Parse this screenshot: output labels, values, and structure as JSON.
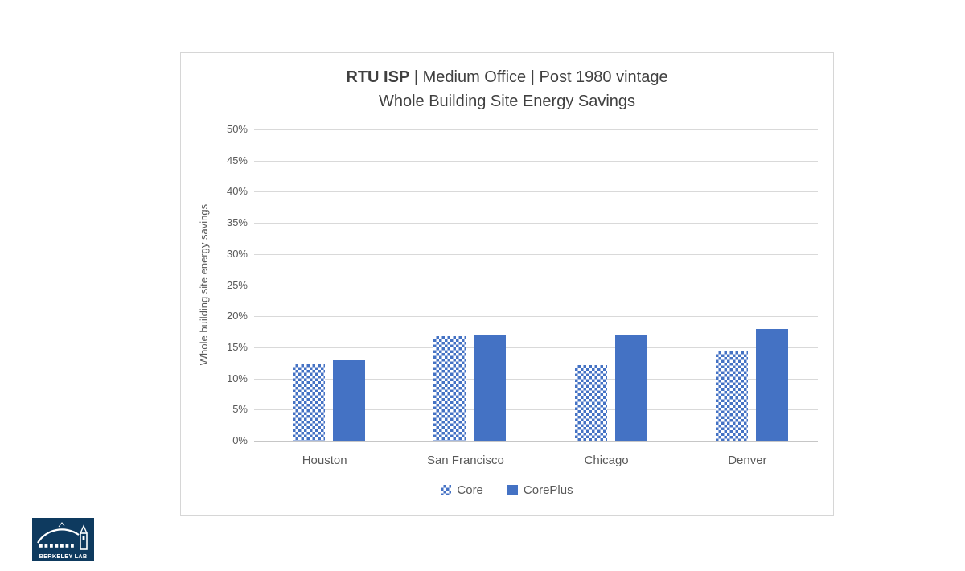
{
  "chart_data": {
    "type": "bar",
    "title_bold": "RTU ISP",
    "title_rest": " | Medium Office | Post 1980 vintage",
    "subtitle": "Whole Building Site Energy Savings",
    "categories": [
      "Houston",
      "San Francisco",
      "Chicago",
      "Denver"
    ],
    "series": [
      {
        "name": "Core",
        "style": "pattern",
        "values": [
          12.3,
          16.8,
          12.1,
          14.3
        ]
      },
      {
        "name": "CorePlus",
        "style": "solid",
        "values": [
          12.9,
          16.9,
          17.1,
          18.0
        ]
      }
    ],
    "ylabel": "Whole building site energy savings",
    "xlabel": "",
    "ylim": [
      0,
      50
    ],
    "ytick_step": 5,
    "ytick_suffix": "%",
    "grid": true,
    "legend_position": "bottom"
  },
  "colors": {
    "bar_blue": "#4472c4",
    "gridline": "#d9d9d9",
    "axis_text": "#595959",
    "title_text": "#404040",
    "card_border": "#d6d6d6",
    "logo_navy": "#0e3a5f"
  },
  "logo": {
    "text": "BERKELEY LAB"
  }
}
